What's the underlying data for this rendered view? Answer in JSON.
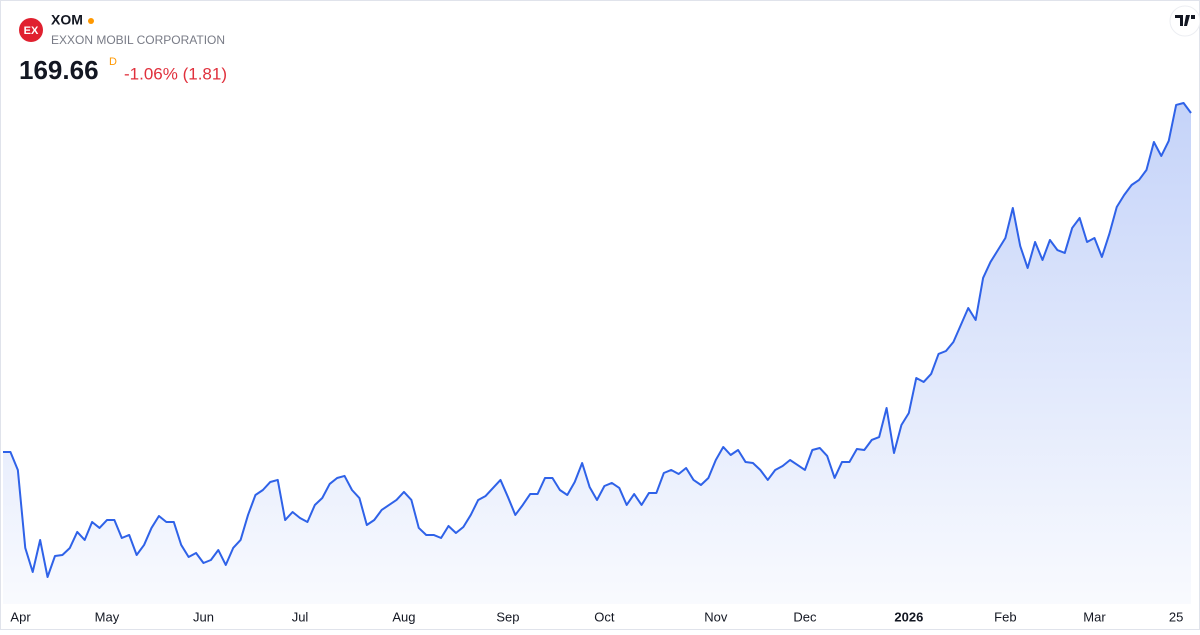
{
  "chart_data": {
    "type": "area",
    "logo": "EX",
    "symbol": "XOM",
    "name": "EXXON MOBIL CORPORATION",
    "price": 169.66,
    "interval": "D",
    "change": "-1.06% (1.81)",
    "color": "#2f62e8",
    "values": [
      118.03,
      118.03,
      115.29,
      103.41,
      99.75,
      104.63,
      98.99,
      102.19,
      102.34,
      103.41,
      105.85,
      104.63,
      107.37,
      106.46,
      107.67,
      107.67,
      104.93,
      105.39,
      102.34,
      103.87,
      106.46,
      108.28,
      107.37,
      107.37,
      103.87,
      102.04,
      102.65,
      101.12,
      101.58,
      103.1,
      100.82,
      103.41,
      104.63,
      108.44,
      111.48,
      112.24,
      113.46,
      113.77,
      107.67,
      108.89,
      107.98,
      107.37,
      109.96,
      111.02,
      113.16,
      114.07,
      114.38,
      112.24,
      111.02,
      106.91,
      107.67,
      109.2,
      109.96,
      110.72,
      111.94,
      110.72,
      106.46,
      105.39,
      105.39,
      104.93,
      106.76,
      105.69,
      106.61,
      108.44,
      110.72,
      111.33,
      112.55,
      113.77,
      111.18,
      108.44,
      109.96,
      111.63,
      111.63,
      114.07,
      114.07,
      112.24,
      111.48,
      113.46,
      116.35,
      112.7,
      110.72,
      112.85,
      113.31,
      112.55,
      109.96,
      111.63,
      109.96,
      111.79,
      111.79,
      114.83,
      115.29,
      114.68,
      115.59,
      113.77,
      113.0,
      114.07,
      116.81,
      118.79,
      117.57,
      118.33,
      116.51,
      116.35,
      115.29,
      113.77,
      115.29,
      115.9,
      116.81,
      116.05,
      115.29,
      118.33,
      118.64,
      117.42,
      114.07,
      116.51,
      116.51,
      118.49,
      118.33,
      119.86,
      120.31,
      124.73,
      117.88,
      122.14,
      123.97,
      129.3,
      128.69,
      129.91,
      132.96,
      133.41,
      134.78,
      137.37,
      139.96,
      138.13,
      144.53,
      146.97,
      148.79,
      150.62,
      155.19,
      149.4,
      146.05,
      150.01,
      147.27,
      150.32,
      148.79,
      148.34,
      152.15,
      153.67,
      150.01,
      150.62,
      147.73,
      151.23,
      155.34,
      157.17,
      158.69,
      159.46,
      160.98,
      165.24,
      163.11,
      165.4,
      170.88,
      171.18,
      169.66
    ],
    "xticks": [
      {
        "value": 1,
        "label": "Apr"
      },
      {
        "value": 14,
        "label": "May"
      },
      {
        "value": 27,
        "label": "Jun"
      },
      {
        "value": 40,
        "label": "Jul"
      },
      {
        "value": 54,
        "label": "Aug"
      },
      {
        "value": 68,
        "label": "Sep"
      },
      {
        "value": 81,
        "label": "Oct"
      },
      {
        "value": 96,
        "label": "Nov"
      },
      {
        "value": 108,
        "label": "Dec"
      },
      {
        "value": 122,
        "label": "2026"
      },
      {
        "value": 135,
        "label": "Feb"
      },
      {
        "value": 147,
        "label": "Mar"
      },
      {
        "value": 158,
        "label": "25"
      }
    ]
  }
}
